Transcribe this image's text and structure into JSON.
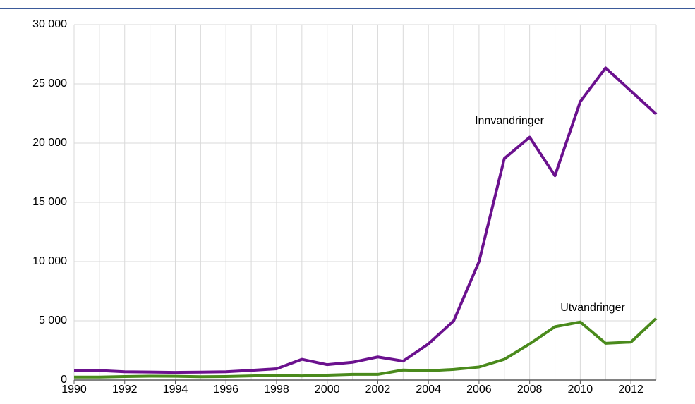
{
  "chart_data": {
    "type": "line",
    "x": [
      1990,
      1991,
      1992,
      1993,
      1994,
      1995,
      1996,
      1997,
      1998,
      1999,
      2000,
      2001,
      2002,
      2003,
      2004,
      2005,
      2006,
      2007,
      2008,
      2009,
      2010,
      2011,
      2012,
      2013
    ],
    "series": [
      {
        "name": "Innvandringer",
        "color": "#6b118e",
        "values": [
          800,
          800,
          700,
          680,
          650,
          670,
          700,
          820,
          950,
          1750,
          1300,
          1500,
          1950,
          1600,
          3050,
          5000,
          10000,
          18700,
          20500,
          17250,
          23500,
          26350,
          24400,
          22450
        ]
      },
      {
        "name": "Utvandringer",
        "color": "#4a8a1c",
        "values": [
          250,
          250,
          300,
          330,
          320,
          280,
          300,
          350,
          400,
          350,
          420,
          480,
          480,
          850,
          780,
          900,
          1100,
          1750,
          3050,
          4500,
          4900,
          3100,
          3200,
          5200
        ]
      }
    ],
    "xlim": [
      1990,
      2013
    ],
    "xticks": [
      1990,
      1992,
      1994,
      1996,
      1998,
      2000,
      2002,
      2004,
      2006,
      2008,
      2010,
      2012
    ],
    "ylim": [
      0,
      30000
    ],
    "yticks": [
      0,
      {
        "value": 5000,
        "label": "5 000"
      },
      {
        "value": 10000,
        "label": "10 000"
      },
      {
        "value": 15000,
        "label": "15 000"
      },
      {
        "value": 20000,
        "label": "20 000"
      },
      {
        "value": 25000,
        "label": "25 000"
      },
      {
        "value": 30000,
        "label": "30 000"
      }
    ],
    "grid": true
  }
}
